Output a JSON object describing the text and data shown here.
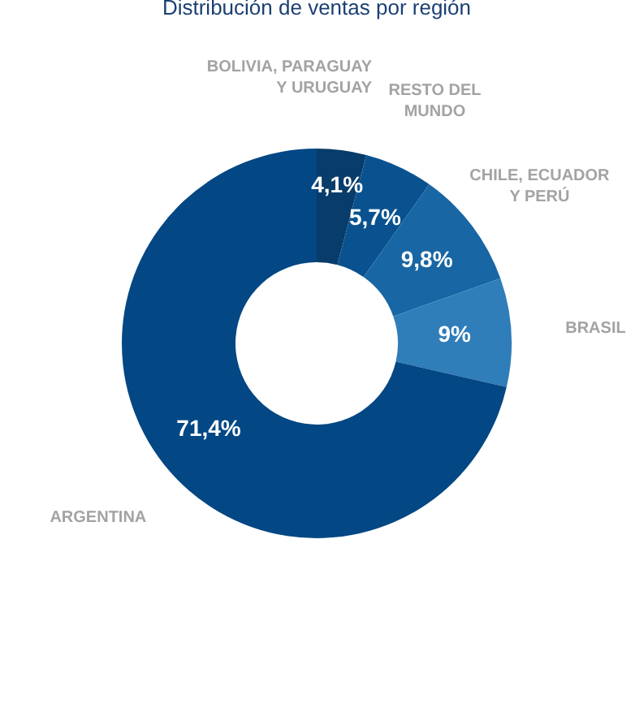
{
  "chart_data": {
    "type": "donut",
    "title": "Distribución de ventas por región",
    "categories": [
      "BOLIVIA, PARAGUAY Y URUGUAY",
      "RESTO DEL MUNDO",
      "CHILE, ECUADOR Y PERÚ",
      "BRASIL",
      "ARGENTINA"
    ],
    "values": [
      4.1,
      5.7,
      9.8,
      9,
      71.4
    ],
    "colors": [
      "#083c6a",
      "#09528f",
      "#1866a4",
      "#2f7db9",
      "#034784"
    ],
    "value_labels": [
      "4,1%",
      "5,7%",
      "9,8%",
      "9%",
      "71,4%"
    ]
  }
}
